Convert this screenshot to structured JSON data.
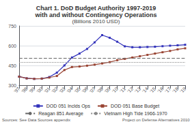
{
  "chart_data": {
    "type": "line",
    "title": [
      "Chart 1. DoD Budget Authority 1997-2019",
      "with and without Contingency Operations"
    ],
    "subtitle": "(Billions 2010 USD)",
    "categories": [
      "'97",
      "'98",
      "'99",
      "'00",
      "'01",
      "'02",
      "'03",
      "'04",
      "'05",
      "'06",
      "'07",
      "'08",
      "'09",
      "'10",
      "'11",
      "'12",
      "'13",
      "'14",
      "'15",
      "'16",
      "'17",
      "'18",
      "'19"
    ],
    "series": [
      {
        "name": "DOD 051 Inclds Ops",
        "color": "#3333bb",
        "marker": "square",
        "values": [
          365,
          352,
          348,
          350,
          362,
          395,
          450,
          510,
          540,
          575,
          625,
          680,
          660,
          630,
          595,
          588,
          588,
          590,
          592,
          596,
          600,
          603,
          607
        ]
      },
      {
        "name": "DOD 051 Base Budget",
        "color": "#994433",
        "marker": "square",
        "values": [
          365,
          352,
          348,
          350,
          358,
          370,
          415,
          438,
          442,
          448,
          456,
          465,
          475,
          490,
          500,
          510,
          520,
          530,
          540,
          550,
          560,
          572,
          580
        ]
      }
    ],
    "reference_lines": [
      {
        "name": "Reagan 851 Average",
        "value": 508,
        "color": "#666666",
        "line_style": "dashed"
      },
      {
        "name": "Vietnam High Tide 1966-1970",
        "value": 473,
        "color": "#888888",
        "line_style": "dotted"
      }
    ],
    "ylim": [
      300,
      750
    ],
    "yticks": [
      300,
      450,
      600,
      750
    ],
    "grid": true,
    "legend": "bottom",
    "annotations": [
      "Sources: See Data Sources appendix",
      "Project on Defense Alternatives 2010"
    ]
  }
}
